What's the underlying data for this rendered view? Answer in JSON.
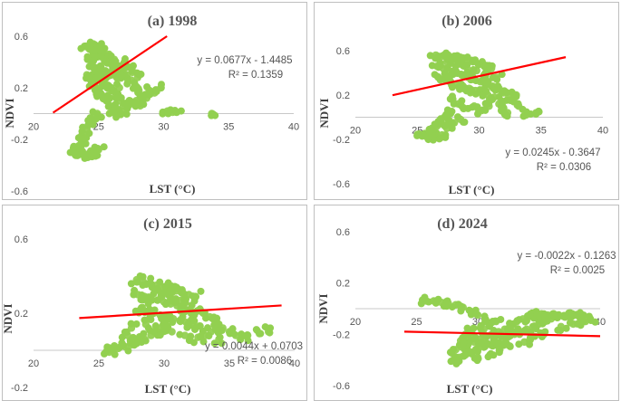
{
  "chart_data": [
    {
      "type": "scatter",
      "title": "(a) 1998",
      "xlabel": "LST (°C)",
      "ylabel": "NDVI",
      "xlim": [
        20,
        40
      ],
      "ylim": [
        -0.6,
        0.6
      ],
      "xticks": [
        "20",
        "25",
        "30",
        "35",
        "40"
      ],
      "yticks": [
        "0.6",
        "0.2",
        "-0.2",
        "-0.6"
      ],
      "trendline": {
        "slope": 0.0677,
        "intercept": -1.4485,
        "x_range": [
          21.5,
          30.5
        ]
      },
      "equation": "y = 0.0677x - 1.4485",
      "r2": "R² = 0.1359",
      "points": [
        [
          24.0,
          0.52
        ],
        [
          24.3,
          0.5
        ],
        [
          24.6,
          0.48
        ],
        [
          24.9,
          0.46
        ],
        [
          25.2,
          0.44
        ],
        [
          25.5,
          0.42
        ],
        [
          25.8,
          0.4
        ],
        [
          26.1,
          0.38
        ],
        [
          26.4,
          0.36
        ],
        [
          26.8,
          0.34
        ],
        [
          24.2,
          0.42
        ],
        [
          24.5,
          0.38
        ],
        [
          24.8,
          0.34
        ],
        [
          25.1,
          0.3
        ],
        [
          25.4,
          0.26
        ],
        [
          25.7,
          0.22
        ],
        [
          26.0,
          0.18
        ],
        [
          26.3,
          0.14
        ],
        [
          26.6,
          0.1
        ],
        [
          26.9,
          0.06
        ],
        [
          27.2,
          0.3
        ],
        [
          27.5,
          0.26
        ],
        [
          27.8,
          0.22
        ],
        [
          28.1,
          0.18
        ],
        [
          28.4,
          0.14
        ],
        [
          28.7,
          0.12
        ],
        [
          27.0,
          0.4
        ],
        [
          27.3,
          0.36
        ],
        [
          27.6,
          0.32
        ],
        [
          28.0,
          0.28
        ],
        [
          24.1,
          0.3
        ],
        [
          24.4,
          0.26
        ],
        [
          24.7,
          0.22
        ],
        [
          25.0,
          0.18
        ],
        [
          25.3,
          0.14
        ],
        [
          25.6,
          0.1
        ],
        [
          25.9,
          0.06
        ],
        [
          26.2,
          0.02
        ],
        [
          26.5,
          0.0
        ],
        [
          26.8,
          0.02
        ],
        [
          24.9,
          0.0
        ],
        [
          24.6,
          -0.04
        ],
        [
          24.3,
          -0.08
        ],
        [
          24.1,
          -0.12
        ],
        [
          23.9,
          -0.16
        ],
        [
          23.8,
          -0.2
        ],
        [
          23.6,
          -0.24
        ],
        [
          23.4,
          -0.26
        ],
        [
          23.2,
          -0.28
        ],
        [
          23.3,
          -0.3
        ],
        [
          23.6,
          -0.31
        ],
        [
          23.9,
          -0.32
        ],
        [
          24.2,
          -0.32
        ],
        [
          24.5,
          -0.31
        ],
        [
          24.8,
          -0.3
        ],
        [
          25.0,
          -0.28
        ],
        [
          24.4,
          -0.29
        ],
        [
          23.5,
          -0.29
        ],
        [
          28.9,
          0.18
        ],
        [
          29.3,
          0.16
        ],
        [
          29.8,
          0.2
        ],
        [
          30.3,
          0.02
        ],
        [
          30.7,
          0.01
        ],
        [
          31.0,
          0.01
        ],
        [
          33.7,
          0.0
        ],
        [
          27.4,
          0.08
        ],
        [
          28.2,
          0.06
        ],
        [
          27.9,
          0.1
        ],
        [
          25.2,
          0.34
        ],
        [
          25.6,
          0.32
        ],
        [
          26.0,
          0.3
        ],
        [
          26.4,
          0.28
        ],
        [
          25.4,
          0.5
        ],
        [
          25.8,
          0.46
        ],
        [
          26.2,
          0.42
        ],
        [
          24.6,
          0.54
        ],
        [
          25.0,
          0.52
        ],
        [
          26.6,
          0.2
        ]
      ]
    },
    {
      "type": "scatter",
      "title": "(b) 2006",
      "xlabel": "LST (°C)",
      "ylabel": "NDVI",
      "xlim": [
        20,
        40
      ],
      "ylim": [
        -0.6,
        0.6
      ],
      "xticks": [
        "20",
        "25",
        "30",
        "35",
        "40"
      ],
      "yticks": [
        "0.6",
        "0.2",
        "-0.2",
        "-0.6"
      ],
      "trendline": {
        "slope": 0.0245,
        "intercept": -0.3647,
        "x_range": [
          23,
          37
        ]
      },
      "equation": "y = 0.0245x - 0.3647",
      "r2": "R² = 0.0306",
      "points": [
        [
          26.5,
          0.56
        ],
        [
          27.0,
          0.55
        ],
        [
          27.5,
          0.56
        ],
        [
          28.0,
          0.55
        ],
        [
          28.5,
          0.54
        ],
        [
          29.0,
          0.52
        ],
        [
          29.5,
          0.5
        ],
        [
          30.0,
          0.48
        ],
        [
          30.5,
          0.46
        ],
        [
          31.0,
          0.44
        ],
        [
          26.6,
          0.46
        ],
        [
          27.1,
          0.44
        ],
        [
          27.6,
          0.42
        ],
        [
          28.1,
          0.4
        ],
        [
          28.6,
          0.38
        ],
        [
          29.1,
          0.36
        ],
        [
          29.6,
          0.34
        ],
        [
          30.1,
          0.32
        ],
        [
          30.6,
          0.3
        ],
        [
          31.1,
          0.28
        ],
        [
          26.7,
          0.36
        ],
        [
          27.2,
          0.34
        ],
        [
          27.7,
          0.32
        ],
        [
          28.2,
          0.3
        ],
        [
          28.7,
          0.28
        ],
        [
          29.2,
          0.26
        ],
        [
          29.7,
          0.24
        ],
        [
          30.2,
          0.22
        ],
        [
          30.7,
          0.2
        ],
        [
          31.2,
          0.18
        ],
        [
          31.6,
          0.26
        ],
        [
          32.0,
          0.22
        ],
        [
          32.4,
          0.18
        ],
        [
          32.8,
          0.14
        ],
        [
          33.2,
          0.1
        ],
        [
          31.8,
          0.06
        ],
        [
          32.3,
          0.04
        ],
        [
          33.8,
          0.02
        ],
        [
          34.6,
          0.04
        ],
        [
          33.0,
          0.2
        ],
        [
          27.8,
          0.16
        ],
        [
          28.3,
          0.12
        ],
        [
          28.8,
          0.08
        ],
        [
          27.5,
          0.04
        ],
        [
          27.2,
          0.0
        ],
        [
          26.9,
          -0.04
        ],
        [
          26.6,
          -0.08
        ],
        [
          26.3,
          -0.12
        ],
        [
          26.0,
          -0.15
        ],
        [
          25.4,
          -0.17
        ],
        [
          25.8,
          -0.18
        ],
        [
          26.2,
          -0.19
        ],
        [
          26.6,
          -0.18
        ],
        [
          27.0,
          -0.16
        ],
        [
          25.6,
          -0.15
        ],
        [
          27.4,
          -0.1
        ],
        [
          28.0,
          -0.05
        ],
        [
          28.5,
          -0.02
        ],
        [
          29.6,
          0.1
        ],
        [
          30.2,
          0.06
        ],
        [
          30.8,
          0.1
        ],
        [
          29.0,
          0.45
        ],
        [
          29.8,
          0.42
        ],
        [
          30.4,
          0.38
        ],
        [
          31.4,
          0.36
        ],
        [
          28.4,
          0.48
        ],
        [
          27.4,
          0.5
        ],
        [
          31.6,
          0.12
        ]
      ]
    },
    {
      "type": "scatter",
      "title": "(c) 2015",
      "xlabel": "LST (°C)",
      "ylabel": "NDVI",
      "xlim": [
        20,
        40
      ],
      "ylim": [
        -0.2,
        0.6
      ],
      "xticks": [
        "20",
        "25",
        "30",
        "35",
        "40"
      ],
      "yticks": [
        "0.6",
        "0.2",
        "-0.2"
      ],
      "trendline": {
        "slope": 0.0044,
        "intercept": 0.0703,
        "x_range": [
          23.5,
          39
        ]
      },
      "equation": "y = 0.0044x + 0.0703",
      "r2": "R² = 0.0086",
      "points": [
        [
          27.9,
          0.38
        ],
        [
          28.4,
          0.37
        ],
        [
          28.9,
          0.36
        ],
        [
          29.4,
          0.35
        ],
        [
          29.9,
          0.34
        ],
        [
          30.4,
          0.33
        ],
        [
          30.9,
          0.32
        ],
        [
          31.4,
          0.31
        ],
        [
          31.9,
          0.3
        ],
        [
          32.4,
          0.29
        ],
        [
          28.0,
          0.3
        ],
        [
          28.5,
          0.29
        ],
        [
          29.0,
          0.28
        ],
        [
          29.5,
          0.27
        ],
        [
          30.0,
          0.26
        ],
        [
          30.5,
          0.25
        ],
        [
          31.0,
          0.24
        ],
        [
          31.5,
          0.23
        ],
        [
          32.0,
          0.22
        ],
        [
          32.5,
          0.21
        ],
        [
          28.2,
          0.22
        ],
        [
          28.7,
          0.21
        ],
        [
          29.2,
          0.2
        ],
        [
          29.7,
          0.19
        ],
        [
          30.2,
          0.18
        ],
        [
          30.7,
          0.17
        ],
        [
          31.2,
          0.16
        ],
        [
          31.7,
          0.15
        ],
        [
          32.2,
          0.14
        ],
        [
          32.7,
          0.13
        ],
        [
          33.0,
          0.2
        ],
        [
          33.5,
          0.18
        ],
        [
          34.0,
          0.16
        ],
        [
          34.5,
          0.12
        ],
        [
          35.0,
          0.1
        ],
        [
          35.5,
          0.08
        ],
        [
          33.2,
          0.08
        ],
        [
          34.2,
          0.06
        ],
        [
          36.4,
          0.08
        ],
        [
          37.3,
          0.09
        ],
        [
          38.0,
          0.1
        ],
        [
          26.0,
          0.0
        ],
        [
          26.5,
          0.01
        ],
        [
          27.0,
          0.02
        ],
        [
          27.5,
          0.03
        ],
        [
          28.0,
          0.05
        ],
        [
          28.5,
          0.06
        ],
        [
          29.0,
          0.08
        ],
        [
          29.5,
          0.1
        ],
        [
          30.0,
          0.12
        ],
        [
          25.8,
          -0.01
        ],
        [
          28.6,
          0.14
        ],
        [
          29.6,
          0.12
        ],
        [
          30.6,
          0.1
        ],
        [
          31.6,
          0.08
        ],
        [
          32.6,
          0.07
        ],
        [
          33.6,
          0.1
        ],
        [
          27.5,
          0.12
        ],
        [
          27.2,
          0.08
        ],
        [
          30.3,
          0.3
        ],
        [
          31.3,
          0.27
        ]
      ]
    },
    {
      "type": "scatter",
      "title": "(d) 2024",
      "xlabel": "LST (°C)",
      "ylabel": "NDVI",
      "xlim": [
        20,
        40
      ],
      "ylim": [
        -0.6,
        0.6
      ],
      "xticks": [
        "20",
        "25",
        "30",
        "35",
        "40"
      ],
      "yticks": [
        "0.6",
        "0.2",
        "-0.2",
        "-0.6"
      ],
      "trendline": {
        "slope": -0.0022,
        "intercept": -0.1263,
        "x_range": [
          24,
          40
        ]
      },
      "equation": "y = -0.0022x - 0.1263",
      "r2": "R² = 0.0025",
      "points": [
        [
          25.8,
          0.06
        ],
        [
          26.4,
          0.06
        ],
        [
          27.0,
          0.05
        ],
        [
          27.6,
          0.04
        ],
        [
          28.2,
          0.03
        ],
        [
          28.8,
          0.01
        ],
        [
          29.4,
          -0.02
        ],
        [
          30.0,
          -0.05
        ],
        [
          30.6,
          -0.08
        ],
        [
          28.0,
          -0.4
        ],
        [
          28.5,
          -0.38
        ],
        [
          29.0,
          -0.36
        ],
        [
          29.5,
          -0.34
        ],
        [
          30.0,
          -0.32
        ],
        [
          30.5,
          -0.3
        ],
        [
          31.0,
          -0.28
        ],
        [
          31.5,
          -0.26
        ],
        [
          32.0,
          -0.24
        ],
        [
          32.5,
          -0.22
        ],
        [
          28.2,
          -0.32
        ],
        [
          28.7,
          -0.3
        ],
        [
          29.2,
          -0.28
        ],
        [
          29.7,
          -0.26
        ],
        [
          30.2,
          -0.24
        ],
        [
          30.7,
          -0.22
        ],
        [
          31.2,
          -0.2
        ],
        [
          31.7,
          -0.18
        ],
        [
          32.2,
          -0.16
        ],
        [
          32.7,
          -0.14
        ],
        [
          33.0,
          -0.2
        ],
        [
          33.5,
          -0.18
        ],
        [
          34.0,
          -0.16
        ],
        [
          34.5,
          -0.14
        ],
        [
          35.0,
          -0.12
        ],
        [
          35.5,
          -0.1
        ],
        [
          36.0,
          -0.08
        ],
        [
          36.5,
          -0.07
        ],
        [
          37.0,
          -0.06
        ],
        [
          37.5,
          -0.05
        ],
        [
          33.2,
          -0.1
        ],
        [
          33.7,
          -0.08
        ],
        [
          34.2,
          -0.06
        ],
        [
          34.7,
          -0.05
        ],
        [
          35.2,
          -0.04
        ],
        [
          35.7,
          -0.05
        ],
        [
          36.2,
          -0.04
        ],
        [
          38.0,
          -0.05
        ],
        [
          38.5,
          -0.06
        ],
        [
          39.2,
          -0.08
        ],
        [
          30.5,
          -0.16
        ],
        [
          31.0,
          -0.12
        ],
        [
          31.5,
          -0.1
        ],
        [
          29.5,
          -0.18
        ],
        [
          29.0,
          -0.2
        ],
        [
          28.6,
          -0.25
        ],
        [
          33.8,
          -0.26
        ],
        [
          34.4,
          -0.22
        ],
        [
          35.4,
          -0.2
        ],
        [
          32.4,
          -0.28
        ],
        [
          30.0,
          -0.38
        ],
        [
          31.0,
          -0.36
        ],
        [
          31.8,
          -0.32
        ],
        [
          36.8,
          -0.14
        ],
        [
          37.8,
          -0.12
        ],
        [
          38.8,
          -0.1
        ]
      ]
    }
  ]
}
